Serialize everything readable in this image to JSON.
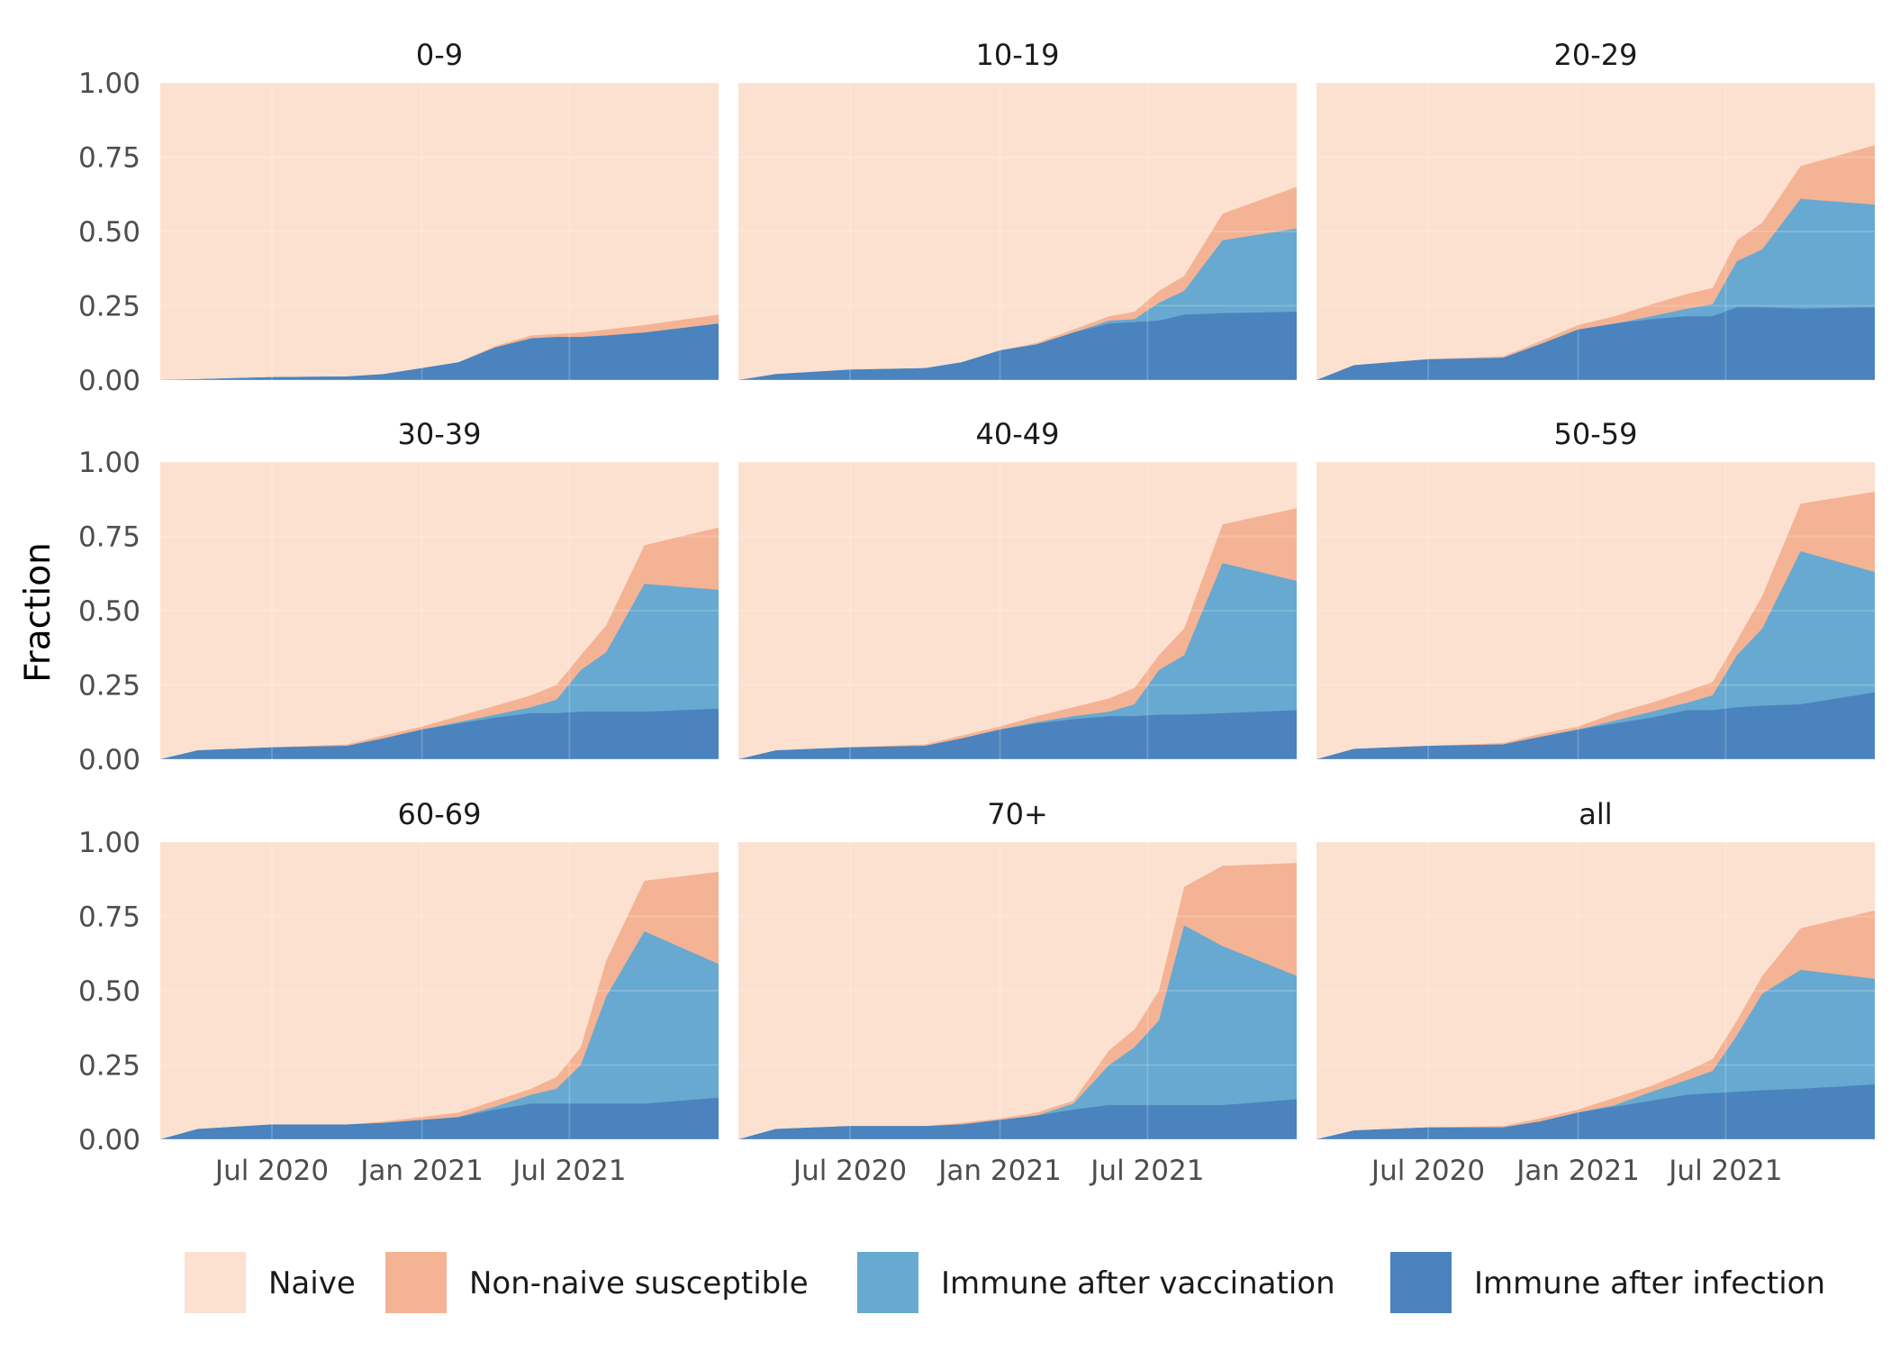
{
  "chart_data": {
    "type": "area",
    "stacked": true,
    "ylabel": "Fraction",
    "xlabel": "",
    "ylim": [
      0,
      1
    ],
    "xlim": [
      "2020-02-15",
      "2021-12-31"
    ],
    "y_ticks": [
      "0.00",
      "0.25",
      "0.50",
      "0.75",
      "1.00"
    ],
    "x_ticks": [
      {
        "date": "2020-07-01",
        "label": "Jul 2020"
      },
      {
        "date": "2021-01-01",
        "label": "Jan 2021"
      },
      {
        "date": "2021-07-01",
        "label": "Jul 2021"
      }
    ],
    "grid": true,
    "legend_position": "bottom",
    "layers": [
      {
        "name": "Naive",
        "color": "#FCE1D0"
      },
      {
        "name": "Non-naive susceptible",
        "color": "#F4B394"
      },
      {
        "name": "Immune after vaccination",
        "color": "#67A9D0"
      },
      {
        "name": "Immune after infection",
        "color": "#4A83BD"
      }
    ],
    "x": [
      "2020-02-15",
      "2020-04-01",
      "2020-07-01",
      "2020-10-01",
      "2020-11-15",
      "2021-01-01",
      "2021-02-15",
      "2021-04-01",
      "2021-05-15",
      "2021-06-15",
      "2021-07-15",
      "2021-08-15",
      "2021-10-01",
      "2021-12-31"
    ],
    "note": "Each facet lists three cumulative boundaries: infection = top of 'Immune after infection', vaccinated = top of 'Immune after vaccination', susceptible = top of 'Non-naive susceptible'; 'Naive' fills up to 1.00.",
    "facets": [
      {
        "title": "0-9",
        "infection": [
          0,
          0.003,
          0.01,
          0.012,
          0.02,
          0.04,
          0.06,
          0.11,
          0.14,
          0.145,
          0.145,
          0.15,
          0.16,
          0.19
        ],
        "vaccinated": [
          0,
          0.003,
          0.01,
          0.012,
          0.02,
          0.04,
          0.06,
          0.11,
          0.14,
          0.145,
          0.145,
          0.15,
          0.16,
          0.19
        ],
        "susceptible": [
          0,
          0.003,
          0.01,
          0.012,
          0.02,
          0.04,
          0.06,
          0.115,
          0.15,
          0.155,
          0.16,
          0.17,
          0.185,
          0.22
        ]
      },
      {
        "title": "10-19",
        "infection": [
          0,
          0.02,
          0.035,
          0.04,
          0.06,
          0.1,
          0.12,
          0.16,
          0.19,
          0.195,
          0.2,
          0.22,
          0.225,
          0.23
        ],
        "vaccinated": [
          0,
          0.02,
          0.035,
          0.04,
          0.06,
          0.1,
          0.12,
          0.16,
          0.2,
          0.205,
          0.26,
          0.3,
          0.47,
          0.51
        ],
        "susceptible": [
          0,
          0.02,
          0.035,
          0.04,
          0.06,
          0.1,
          0.125,
          0.17,
          0.215,
          0.23,
          0.3,
          0.35,
          0.56,
          0.65
        ]
      },
      {
        "title": "20-29",
        "infection": [
          0,
          0.05,
          0.07,
          0.075,
          0.12,
          0.17,
          0.19,
          0.205,
          0.215,
          0.215,
          0.245,
          0.245,
          0.24,
          0.245
        ],
        "vaccinated": [
          0,
          0.05,
          0.07,
          0.075,
          0.12,
          0.17,
          0.19,
          0.215,
          0.24,
          0.255,
          0.4,
          0.44,
          0.61,
          0.59
        ],
        "susceptible": [
          0,
          0.05,
          0.07,
          0.08,
          0.13,
          0.185,
          0.215,
          0.255,
          0.29,
          0.31,
          0.47,
          0.53,
          0.72,
          0.79
        ]
      },
      {
        "title": "30-39",
        "infection": [
          0,
          0.03,
          0.04,
          0.045,
          0.07,
          0.1,
          0.12,
          0.14,
          0.155,
          0.155,
          0.16,
          0.16,
          0.16,
          0.17
        ],
        "vaccinated": [
          0,
          0.03,
          0.04,
          0.045,
          0.07,
          0.1,
          0.125,
          0.15,
          0.175,
          0.2,
          0.3,
          0.36,
          0.59,
          0.57
        ],
        "susceptible": [
          0,
          0.03,
          0.04,
          0.05,
          0.08,
          0.11,
          0.145,
          0.18,
          0.215,
          0.25,
          0.35,
          0.45,
          0.72,
          0.78
        ]
      },
      {
        "title": "40-49",
        "infection": [
          0,
          0.03,
          0.04,
          0.045,
          0.07,
          0.1,
          0.12,
          0.135,
          0.145,
          0.145,
          0.15,
          0.15,
          0.155,
          0.165
        ],
        "vaccinated": [
          0,
          0.03,
          0.04,
          0.045,
          0.07,
          0.1,
          0.125,
          0.145,
          0.16,
          0.185,
          0.3,
          0.35,
          0.66,
          0.6
        ],
        "susceptible": [
          0,
          0.03,
          0.04,
          0.05,
          0.08,
          0.11,
          0.145,
          0.175,
          0.205,
          0.24,
          0.35,
          0.44,
          0.79,
          0.845
        ]
      },
      {
        "title": "50-59",
        "infection": [
          0,
          0.035,
          0.045,
          0.05,
          0.075,
          0.1,
          0.12,
          0.14,
          0.165,
          0.165,
          0.175,
          0.18,
          0.185,
          0.225
        ],
        "vaccinated": [
          0,
          0.035,
          0.045,
          0.05,
          0.075,
          0.1,
          0.13,
          0.16,
          0.19,
          0.215,
          0.35,
          0.44,
          0.7,
          0.63
        ],
        "susceptible": [
          0,
          0.035,
          0.045,
          0.055,
          0.085,
          0.11,
          0.155,
          0.19,
          0.23,
          0.26,
          0.4,
          0.55,
          0.86,
          0.9
        ]
      },
      {
        "title": "60-69",
        "infection": [
          0,
          0.035,
          0.05,
          0.05,
          0.055,
          0.065,
          0.075,
          0.1,
          0.12,
          0.12,
          0.12,
          0.12,
          0.12,
          0.14
        ],
        "vaccinated": [
          0,
          0.035,
          0.05,
          0.05,
          0.055,
          0.065,
          0.075,
          0.11,
          0.15,
          0.17,
          0.25,
          0.48,
          0.7,
          0.59
        ],
        "susceptible": [
          0,
          0.035,
          0.05,
          0.05,
          0.06,
          0.075,
          0.09,
          0.13,
          0.17,
          0.21,
          0.31,
          0.6,
          0.87,
          0.9
        ]
      },
      {
        "title": "70+",
        "infection": [
          0,
          0.035,
          0.045,
          0.045,
          0.05,
          0.065,
          0.08,
          0.1,
          0.115,
          0.115,
          0.115,
          0.115,
          0.115,
          0.135
        ],
        "vaccinated": [
          0,
          0.035,
          0.045,
          0.045,
          0.05,
          0.065,
          0.08,
          0.12,
          0.25,
          0.31,
          0.4,
          0.72,
          0.65,
          0.55
        ],
        "susceptible": [
          0,
          0.035,
          0.045,
          0.045,
          0.055,
          0.07,
          0.09,
          0.13,
          0.3,
          0.37,
          0.5,
          0.85,
          0.92,
          0.93
        ]
      },
      {
        "title": "all",
        "infection": [
          0,
          0.03,
          0.04,
          0.04,
          0.06,
          0.09,
          0.11,
          0.13,
          0.15,
          0.155,
          0.16,
          0.165,
          0.17,
          0.185
        ],
        "vaccinated": [
          0,
          0.03,
          0.04,
          0.04,
          0.06,
          0.09,
          0.115,
          0.16,
          0.2,
          0.23,
          0.35,
          0.49,
          0.57,
          0.54
        ],
        "susceptible": [
          0,
          0.03,
          0.04,
          0.045,
          0.07,
          0.1,
          0.14,
          0.18,
          0.23,
          0.27,
          0.4,
          0.55,
          0.71,
          0.77
        ]
      }
    ]
  }
}
